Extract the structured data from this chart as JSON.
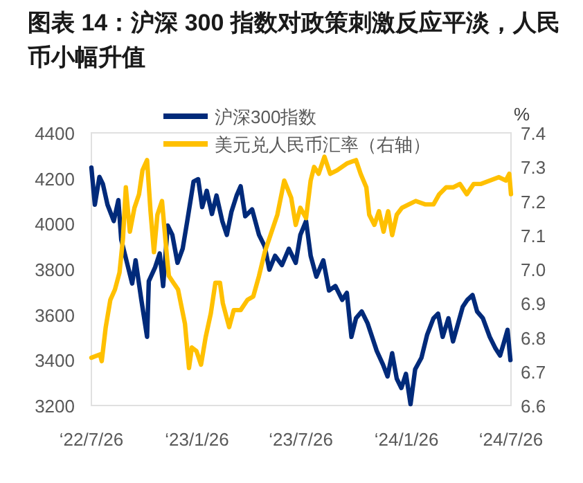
{
  "chart_data": {
    "type": "line",
    "title": "图表 14：沪深 300 指数对政策刺激反应平淡，人民币小幅升值",
    "y2label": "%",
    "legend": "top",
    "grid": false,
    "xlim": [
      "2022-07-26",
      "2024-07-26"
    ],
    "xticks": [
      {
        "value": "2022-07-26",
        "label": "‘22/7/26"
      },
      {
        "value": "2023-01-26",
        "label": "‘23/1/26"
      },
      {
        "value": "2023-07-26",
        "label": "‘23/7/26"
      },
      {
        "value": "2024-01-26",
        "label": "‘24/1/26"
      },
      {
        "value": "2024-07-26",
        "label": "‘24/7/26"
      }
    ],
    "ylim": [
      3200,
      4400
    ],
    "yticks": [
      3200,
      3400,
      3600,
      3800,
      4000,
      4200,
      4400
    ],
    "y2lim": [
      6.6,
      7.4
    ],
    "y2ticks": [
      6.6,
      6.7,
      6.8,
      6.9,
      {
        "value": 7,
        "label": "7.0"
      },
      7.1,
      7.2,
      7.3,
      7.4
    ],
    "series": [
      {
        "name": "沪深300指数",
        "color": "#002a7a",
        "x": [
          "2022-07-26",
          "2022-08-01",
          "2022-08-09",
          "2022-08-15",
          "2022-08-23",
          "2022-09-03",
          "2022-09-11",
          "2022-09-16",
          "2022-09-24",
          "2022-10-05",
          "2022-10-11",
          "2022-10-21",
          "2022-10-31",
          "2022-11-03",
          "2022-11-14",
          "2022-11-22",
          "2022-11-28",
          "2022-12-06",
          "2022-12-14",
          "2022-12-23",
          "2023-01-01",
          "2023-01-09",
          "2023-01-20",
          "2023-01-28",
          "2023-02-04",
          "2023-02-12",
          "2023-02-21",
          "2023-03-01",
          "2023-03-11",
          "2023-03-19",
          "2023-03-27",
          "2023-04-05",
          "2023-04-12",
          "2023-04-20",
          "2023-05-02",
          "2023-05-14",
          "2023-05-24",
          "2023-06-01",
          "2023-06-11",
          "2023-06-23",
          "2023-07-05",
          "2023-07-17",
          "2023-07-25",
          "2023-08-04",
          "2023-08-12",
          "2023-08-22",
          "2023-09-03",
          "2023-09-13",
          "2023-09-24",
          "2023-10-06",
          "2023-10-14",
          "2023-10-22",
          "2023-10-30",
          "2023-11-09",
          "2023-11-19",
          "2023-11-27",
          "2023-12-05",
          "2023-12-16",
          "2023-12-24",
          "2024-01-01",
          "2024-01-09",
          "2024-01-17",
          "2024-01-25",
          "2024-02-02",
          "2024-02-10",
          "2024-02-21",
          "2024-03-02",
          "2024-03-13",
          "2024-03-21",
          "2024-03-29",
          "2024-04-08",
          "2024-04-16",
          "2024-04-25",
          "2024-05-03",
          "2024-05-11",
          "2024-05-20",
          "2024-05-28",
          "2024-06-07",
          "2024-06-19",
          "2024-06-29",
          "2024-07-07",
          "2024-07-13",
          "2024-07-20",
          "2024-07-25"
        ],
        "values": [
          4247,
          4084,
          4206,
          4175,
          4084,
          4012,
          4104,
          3930,
          3849,
          3737,
          3839,
          3665,
          3502,
          3747,
          3808,
          3869,
          3726,
          3992,
          3951,
          3828,
          3890,
          4012,
          4186,
          4196,
          4073,
          4145,
          4043,
          4124,
          4012,
          3951,
          4053,
          4124,
          4165,
          4033,
          4063,
          3951,
          3900,
          3798,
          3859,
          3818,
          3890,
          3828,
          3951,
          4012,
          3859,
          3767,
          3839,
          3706,
          3726,
          3665,
          3696,
          3502,
          3584,
          3614,
          3563,
          3502,
          3441,
          3380,
          3328,
          3430,
          3318,
          3277,
          3339,
          3206,
          3359,
          3410,
          3512,
          3584,
          3604,
          3502,
          3584,
          3482,
          3563,
          3635,
          3665,
          3686,
          3614,
          3584,
          3502,
          3451,
          3420,
          3471,
          3533,
          3400
        ]
      },
      {
        "name": "美元兑人民币汇率（右轴）",
        "color": "#ffc000",
        "axis": "y2",
        "x": [
          "2022-07-26",
          "2022-08-10",
          "2022-08-13",
          "2022-08-20",
          "2022-08-28",
          "2022-09-05",
          "2022-09-13",
          "2022-09-19",
          "2022-09-24",
          "2022-10-01",
          "2022-10-09",
          "2022-10-17",
          "2022-10-23",
          "2022-10-31",
          "2022-11-06",
          "2022-11-12",
          "2022-11-18",
          "2022-11-26",
          "2022-12-05",
          "2022-12-08",
          "2022-12-16",
          "2022-12-24",
          "2023-01-05",
          "2023-01-12",
          "2023-01-17",
          "2023-01-25",
          "2023-02-02",
          "2023-02-10",
          "2023-02-19",
          "2023-02-27",
          "2023-03-07",
          "2023-03-12",
          "2023-03-23",
          "2023-03-31",
          "2023-04-12",
          "2023-04-24",
          "2023-05-04",
          "2023-05-14",
          "2023-05-24",
          "2023-06-03",
          "2023-06-15",
          "2023-06-27",
          "2023-07-09",
          "2023-07-17",
          "2023-07-25",
          "2023-08-04",
          "2023-08-12",
          "2023-08-18",
          "2023-08-26",
          "2023-09-05",
          "2023-09-15",
          "2023-09-27",
          "2023-10-14",
          "2023-10-30",
          "2023-11-07",
          "2023-11-17",
          "2023-11-22",
          "2023-12-01",
          "2023-12-09",
          "2023-12-17",
          "2023-12-25",
          "2024-01-01",
          "2024-01-09",
          "2024-01-18",
          "2024-01-30",
          "2024-02-11",
          "2024-02-28",
          "2024-03-13",
          "2024-03-23",
          "2024-04-04",
          "2024-04-16",
          "2024-04-28",
          "2024-05-10",
          "2024-05-22",
          "2024-06-03",
          "2024-06-19",
          "2024-07-05",
          "2024-07-17",
          "2024-07-23",
          "2024-07-26"
        ],
        "values": [
          6.74,
          6.75,
          6.73,
          6.83,
          6.91,
          6.94,
          6.99,
          7.09,
          7.24,
          7.11,
          7.18,
          7.22,
          7.29,
          7.32,
          7.17,
          7.05,
          7.16,
          7.2,
          7.03,
          6.98,
          6.96,
          6.94,
          6.84,
          6.71,
          6.77,
          6.76,
          6.72,
          6.8,
          6.87,
          6.96,
          6.96,
          6.9,
          6.83,
          6.88,
          6.88,
          6.91,
          6.92,
          6.98,
          7.05,
          7.1,
          7.16,
          7.26,
          7.21,
          7.13,
          7.18,
          7.15,
          7.26,
          7.3,
          7.28,
          7.33,
          7.28,
          7.29,
          7.31,
          7.32,
          7.28,
          7.24,
          7.16,
          7.13,
          7.17,
          7.11,
          7.17,
          7.1,
          7.16,
          7.18,
          7.19,
          7.2,
          7.19,
          7.19,
          7.22,
          7.24,
          7.24,
          7.25,
          7.22,
          7.25,
          7.25,
          7.26,
          7.27,
          7.26,
          7.28,
          7.22
        ]
      }
    ]
  }
}
